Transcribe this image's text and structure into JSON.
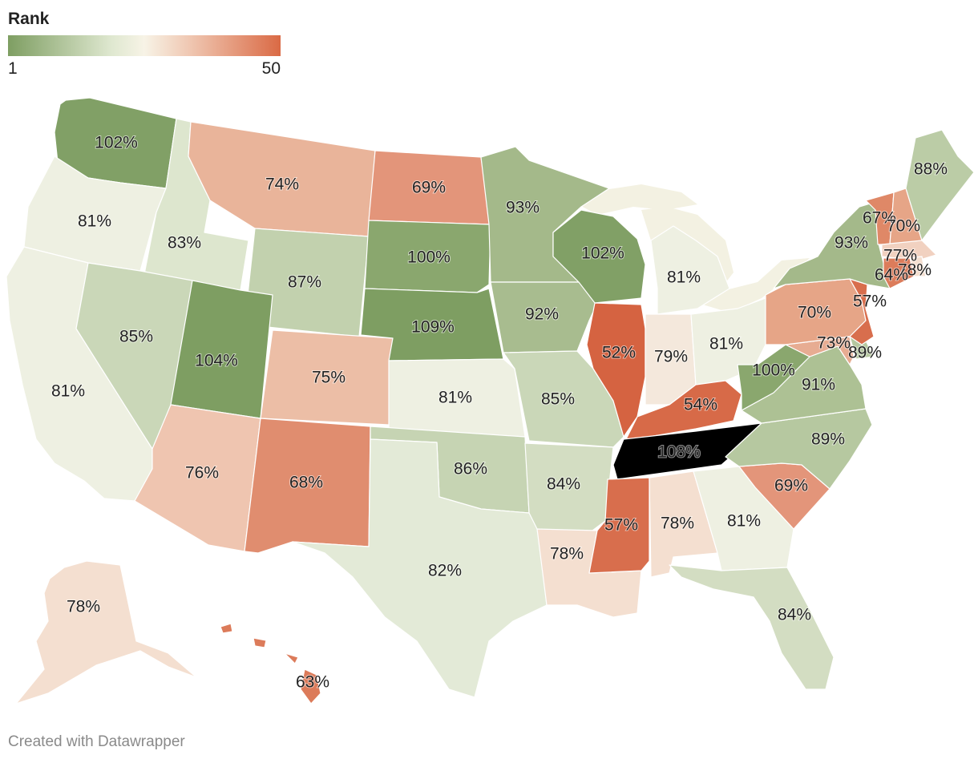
{
  "legend": {
    "title": "Rank",
    "min_label": "1",
    "max_label": "50"
  },
  "credit": "Created with Datawrapper",
  "colors": {
    "c109": "#7e9e62",
    "c104": "#7e9e62",
    "c102": "#81a066",
    "c100": "#8aa76e",
    "c93": "#a4b98a",
    "c92": "#a8bc8f",
    "c91": "#adc194",
    "c89": "#b6c8a0",
    "c88": "#bbcca6",
    "c87": "#c2d1ae",
    "c86": "#c6d4b3",
    "c85": "#cad7b8",
    "c84": "#d3ddc2",
    "c83": "#dde6ce",
    "c82": "#e3ead7",
    "c81": "#eef0e2",
    "c79": "#f4e8dc",
    "c78": "#f4dfd0",
    "c77": "#f1d1c0",
    "c76": "#efc5b0",
    "c75": "#ecbea6",
    "c74": "#e9b49a",
    "c73": "#e7ac92",
    "c70": "#e6a587",
    "c69": "#e3957a",
    "c68": "#e08d6f",
    "c67": "#df8867",
    "c64": "#dc7c5b",
    "c63": "#dc7b5a",
    "c57": "#d86e4d",
    "c54": "#d76a48",
    "c52": "#d56341",
    "lakes": "#f3f1e2"
  },
  "chart_data": {
    "type": "choropleth",
    "legend_title": "Rank",
    "color_scale": {
      "min_rank": 1,
      "max_rank": 50
    },
    "states": [
      {
        "id": "WA",
        "name": "Washington",
        "value": "102%"
      },
      {
        "id": "OR",
        "name": "Oregon",
        "value": "81%"
      },
      {
        "id": "CA",
        "name": "California",
        "value": "81%"
      },
      {
        "id": "ID",
        "name": "Idaho",
        "value": "83%"
      },
      {
        "id": "NV",
        "name": "Nevada",
        "value": "85%"
      },
      {
        "id": "MT",
        "name": "Montana",
        "value": "74%"
      },
      {
        "id": "WY",
        "name": "Wyoming",
        "value": "87%"
      },
      {
        "id": "UT",
        "name": "Utah",
        "value": "104%"
      },
      {
        "id": "AZ",
        "name": "Arizona",
        "value": "76%"
      },
      {
        "id": "CO",
        "name": "Colorado",
        "value": "75%"
      },
      {
        "id": "NM",
        "name": "New Mexico",
        "value": "68%"
      },
      {
        "id": "ND",
        "name": "North Dakota",
        "value": "69%"
      },
      {
        "id": "SD",
        "name": "South Dakota",
        "value": "100%"
      },
      {
        "id": "NE",
        "name": "Nebraska",
        "value": "109%"
      },
      {
        "id": "KS",
        "name": "Kansas",
        "value": "81%"
      },
      {
        "id": "OK",
        "name": "Oklahoma",
        "value": "86%"
      },
      {
        "id": "TX",
        "name": "Texas",
        "value": "82%"
      },
      {
        "id": "MN",
        "name": "Minnesota",
        "value": "93%"
      },
      {
        "id": "IA",
        "name": "Iowa",
        "value": "92%"
      },
      {
        "id": "MO",
        "name": "Missouri",
        "value": "85%"
      },
      {
        "id": "AR",
        "name": "Arkansas",
        "value": "84%"
      },
      {
        "id": "LA",
        "name": "Louisiana",
        "value": "78%"
      },
      {
        "id": "WI",
        "name": "Wisconsin",
        "value": "102%"
      },
      {
        "id": "IL",
        "name": "Illinois",
        "value": "52%"
      },
      {
        "id": "MI",
        "name": "Michigan",
        "value": "81%"
      },
      {
        "id": "IN",
        "name": "Indiana",
        "value": "79%"
      },
      {
        "id": "OH",
        "name": "Ohio",
        "value": "81%"
      },
      {
        "id": "KY",
        "name": "Kentucky",
        "value": "54%"
      },
      {
        "id": "TN",
        "name": "Tennessee",
        "value": "108%"
      },
      {
        "id": "MS",
        "name": "Mississippi",
        "value": "57%"
      },
      {
        "id": "AL",
        "name": "Alabama",
        "value": "78%"
      },
      {
        "id": "GA",
        "name": "Georgia",
        "value": "81%"
      },
      {
        "id": "FL",
        "name": "Florida",
        "value": "84%"
      },
      {
        "id": "SC",
        "name": "South Carolina",
        "value": "69%"
      },
      {
        "id": "NC",
        "name": "North Carolina",
        "value": "89%"
      },
      {
        "id": "VA",
        "name": "Virginia",
        "value": "91%"
      },
      {
        "id": "WV",
        "name": "West Virginia",
        "value": "100%"
      },
      {
        "id": "PA",
        "name": "Pennsylvania",
        "value": "70%"
      },
      {
        "id": "NY",
        "name": "New York",
        "value": "93%"
      },
      {
        "id": "VT",
        "name": "Vermont",
        "value": "67%"
      },
      {
        "id": "NH",
        "name": "New Hampshire",
        "value": "70%"
      },
      {
        "id": "ME",
        "name": "Maine",
        "value": "88%"
      },
      {
        "id": "MA",
        "name": "Massachusetts",
        "value": "77%"
      },
      {
        "id": "RI",
        "name": "Rhode Island",
        "value": "78%"
      },
      {
        "id": "CT",
        "name": "Connecticut",
        "value": "64%"
      },
      {
        "id": "NJ",
        "name": "New Jersey",
        "value": "57%"
      },
      {
        "id": "DE",
        "name": "Delaware",
        "value": "89%"
      },
      {
        "id": "MD",
        "name": "Maryland",
        "value": "73%"
      },
      {
        "id": "AK",
        "name": "Alaska",
        "value": "78%"
      },
      {
        "id": "HI",
        "name": "Hawaii",
        "value": "63%"
      }
    ]
  }
}
